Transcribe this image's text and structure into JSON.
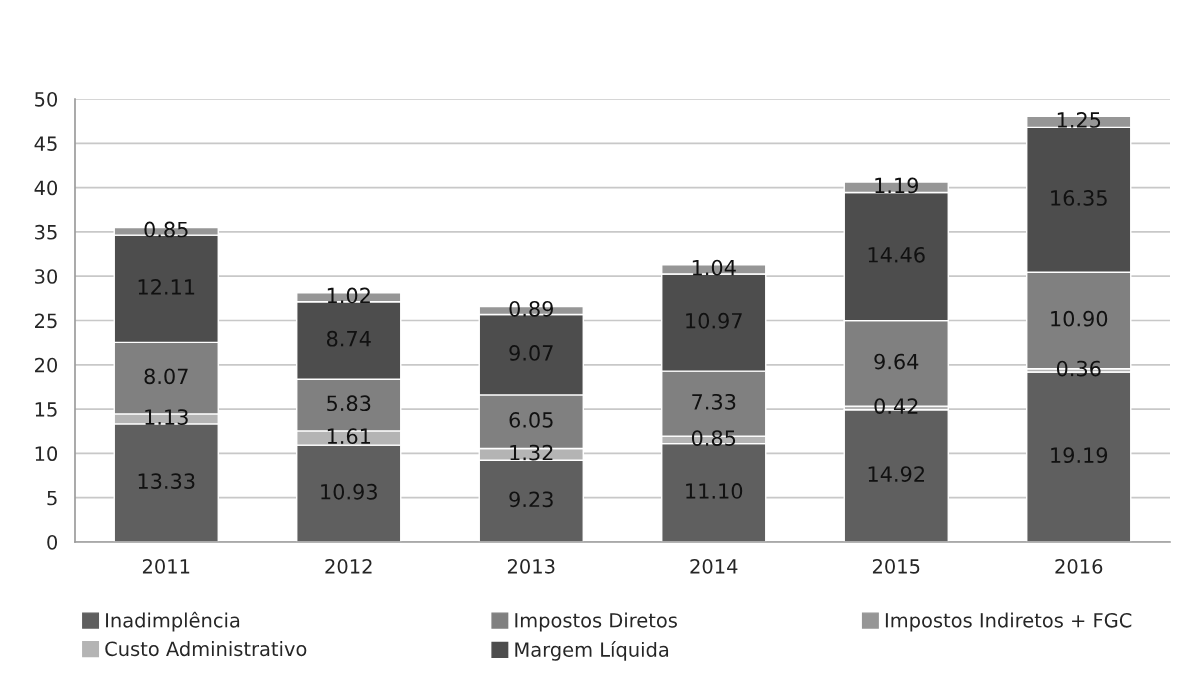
{
  "chart_data": {
    "type": "bar",
    "stacked": true,
    "categories": [
      "2011",
      "2012",
      "2013",
      "2014",
      "2015",
      "2016"
    ],
    "series": [
      {
        "name": "Inadimplência",
        "color": "#5f5f5f",
        "values": [
          13.33,
          10.93,
          9.23,
          11.1,
          14.92,
          19.19
        ],
        "value_labels": [
          "13.33",
          "10.93",
          "9.23",
          "11.10",
          "14.92",
          "19.19"
        ]
      },
      {
        "name": "Custo Administrativo",
        "color": "#b4b4b4",
        "values": [
          1.13,
          1.61,
          1.32,
          0.85,
          0.42,
          0.36
        ],
        "value_labels": [
          "1.13",
          "1.61",
          "1.32",
          "0.85",
          "0.42",
          "0.36"
        ]
      },
      {
        "name": "Impostos Diretos",
        "color": "#808080",
        "values": [
          8.07,
          5.83,
          6.05,
          7.33,
          9.64,
          10.9
        ],
        "value_labels": [
          "8.07",
          "5.83",
          "6.05",
          "7.33",
          "9.64",
          "10.90"
        ]
      },
      {
        "name": "Margem Líquida",
        "color": "#4d4d4d",
        "values": [
          12.11,
          8.74,
          9.07,
          10.97,
          14.46,
          16.35
        ],
        "value_labels": [
          "12.11",
          "8.74",
          "9.07",
          "10.97",
          "14.46",
          "16.35"
        ]
      },
      {
        "name": "Impostos Indiretos + FGC",
        "color": "#969696",
        "values": [
          0.85,
          1.02,
          0.89,
          1.04,
          1.19,
          1.25
        ],
        "value_labels": [
          "0.85",
          "1.02",
          "0.89",
          "1.04",
          "1.19",
          "1.25"
        ]
      }
    ],
    "ylim": [
      0,
      50
    ],
    "yticks": [
      0,
      5,
      10,
      15,
      20,
      25,
      30,
      35,
      40,
      45,
      50
    ],
    "grid": "y",
    "legend": "bottom"
  }
}
